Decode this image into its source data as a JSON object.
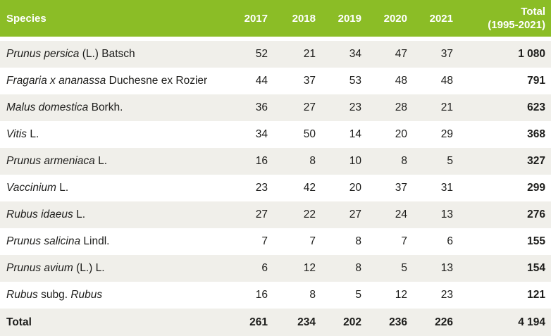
{
  "table": {
    "columns": {
      "species": "Species",
      "years": [
        "2017",
        "2018",
        "2019",
        "2020",
        "2021"
      ],
      "total_line1": "Total",
      "total_line2": "(1995-2021)"
    },
    "rows": [
      {
        "name_parts": [
          {
            "text": "Prunus persica",
            "italic": true
          },
          {
            "text": " (L.) Batsch",
            "italic": false
          }
        ],
        "values": [
          "52",
          "21",
          "34",
          "47",
          "37"
        ],
        "total": "1 080"
      },
      {
        "name_parts": [
          {
            "text": "Fragaria x ananassa",
            "italic": true
          },
          {
            "text": " Duchesne ex Rozier",
            "italic": false
          }
        ],
        "values": [
          "44",
          "37",
          "53",
          "48",
          "48"
        ],
        "total": "791"
      },
      {
        "name_parts": [
          {
            "text": "Malus domestica",
            "italic": true
          },
          {
            "text": " Borkh.",
            "italic": false
          }
        ],
        "values": [
          "36",
          "27",
          "23",
          "28",
          "21"
        ],
        "total": "623"
      },
      {
        "name_parts": [
          {
            "text": "Vitis",
            "italic": true
          },
          {
            "text": " L.",
            "italic": false
          }
        ],
        "values": [
          "34",
          "50",
          "14",
          "20",
          "29"
        ],
        "total": "368"
      },
      {
        "name_parts": [
          {
            "text": "Prunus armeniaca",
            "italic": true
          },
          {
            "text": " L.",
            "italic": false
          }
        ],
        "values": [
          "16",
          "8",
          "10",
          "8",
          "5"
        ],
        "total": "327"
      },
      {
        "name_parts": [
          {
            "text": "Vaccinium",
            "italic": true
          },
          {
            "text": " L.",
            "italic": false
          }
        ],
        "values": [
          "23",
          "42",
          "20",
          "37",
          "31"
        ],
        "total": "299"
      },
      {
        "name_parts": [
          {
            "text": "Rubus idaeus",
            "italic": true
          },
          {
            "text": " L.",
            "italic": false
          }
        ],
        "values": [
          "27",
          "22",
          "27",
          "24",
          "13"
        ],
        "total": "276"
      },
      {
        "name_parts": [
          {
            "text": "Prunus salicina",
            "italic": true
          },
          {
            "text": " Lindl.",
            "italic": false
          }
        ],
        "values": [
          "7",
          "7",
          "8",
          "7",
          "6"
        ],
        "total": "155"
      },
      {
        "name_parts": [
          {
            "text": "Prunus avium",
            "italic": true
          },
          {
            "text": " (L.) L.",
            "italic": false
          }
        ],
        "values": [
          "6",
          "12",
          "8",
          "5",
          "13"
        ],
        "total": "154"
      },
      {
        "name_parts": [
          {
            "text": "Rubus",
            "italic": true
          },
          {
            "text": " subg. ",
            "italic": false
          },
          {
            "text": "Rubus",
            "italic": true
          }
        ],
        "values": [
          "16",
          "8",
          "5",
          "12",
          "23"
        ],
        "total": "121"
      }
    ],
    "footer": {
      "label": "Total",
      "values": [
        "261",
        "234",
        "202",
        "236",
        "226"
      ],
      "total": "4 194"
    }
  },
  "colors": {
    "header_bg": "#8bbd26",
    "header_text": "#ffffff",
    "row_alt_bg": "#f0efea",
    "text": "#1d1d1b"
  }
}
